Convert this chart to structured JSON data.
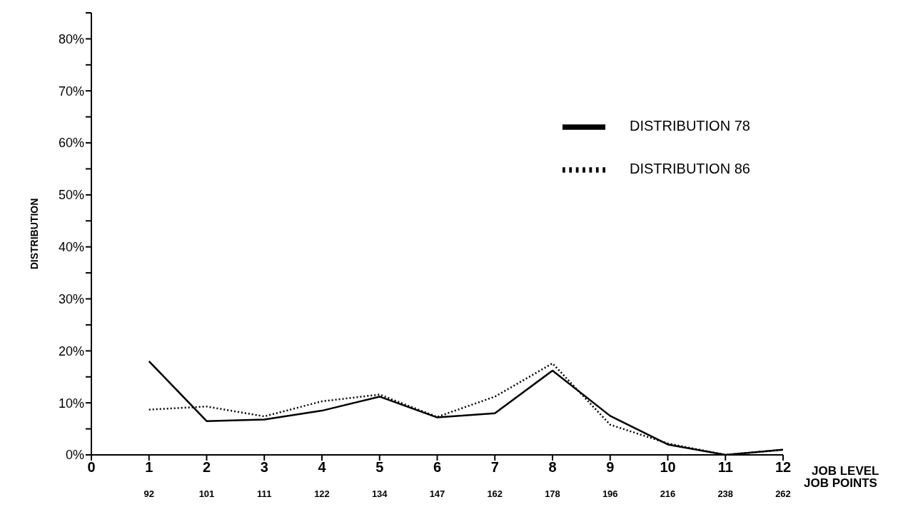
{
  "chart_data": {
    "type": "line",
    "xlabel": "JOB LEVEL",
    "ylabel": "DISTRIBUTION",
    "x": [
      1,
      2,
      3,
      4,
      5,
      6,
      7,
      8,
      9,
      10,
      11,
      12
    ],
    "series": [
      {
        "name": "DISTRIBUTION 78",
        "color": "#000000",
        "line_style": "solid",
        "values": [
          18,
          6.5,
          6.8,
          8.5,
          11.2,
          7.2,
          8,
          16.2,
          7.5,
          2,
          0,
          1
        ]
      },
      {
        "name": "DISTRIBUTION 86",
        "color": "#000000",
        "line_style": "dotted",
        "values": [
          8.7,
          9.3,
          7.4,
          10.3,
          11.6,
          7.3,
          11.2,
          17.6,
          5.8,
          2.2,
          0,
          1
        ]
      }
    ],
    "xlim": [
      0,
      12
    ],
    "xticks": [
      0,
      1,
      2,
      3,
      4,
      5,
      6,
      7,
      8,
      9,
      10,
      11,
      12
    ],
    "ylim": [
      0,
      85
    ],
    "yticks": [
      {
        "value": 0,
        "label": "0%"
      },
      {
        "value": 5,
        "label": null
      },
      {
        "value": 10,
        "label": "10%"
      },
      {
        "value": 15,
        "label": null
      },
      {
        "value": 20,
        "label": "20%"
      },
      {
        "value": 25,
        "label": null
      },
      {
        "value": 30,
        "label": "30%"
      },
      {
        "value": 35,
        "label": null
      },
      {
        "value": 40,
        "label": "40%"
      },
      {
        "value": 45,
        "label": null
      },
      {
        "value": 50,
        "label": "50%"
      },
      {
        "value": 55,
        "label": null
      },
      {
        "value": 60,
        "label": "60%"
      },
      {
        "value": 65,
        "label": null
      },
      {
        "value": 70,
        "label": "70%"
      },
      {
        "value": 75,
        "label": null
      },
      {
        "value": 80,
        "label": "80%"
      },
      {
        "value": 85,
        "label": null
      }
    ],
    "annotations": [
      "92",
      "101",
      "111",
      "122",
      "134",
      "147",
      "162",
      "178",
      "196",
      "216",
      "238",
      "262",
      "JOB POINTS"
    ],
    "grid": false,
    "legend": "top right",
    "marker": "none"
  }
}
